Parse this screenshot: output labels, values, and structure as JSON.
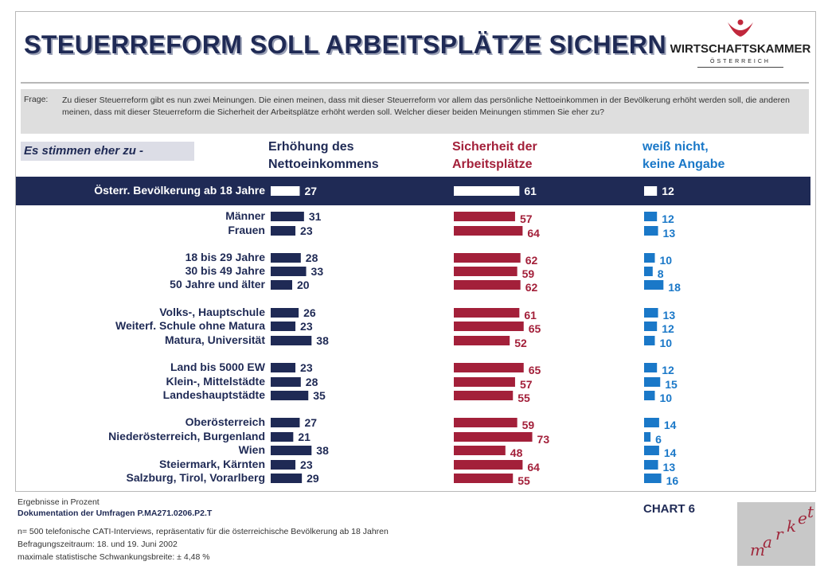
{
  "title": "STEUERREFORM SOLL ARBEITSPLÄTZE SICHERN",
  "logo": {
    "name": "WIRTSCHAFTSKAMMER",
    "sub": "ÖSTERREICH",
    "color": "#c0283c"
  },
  "question": {
    "label": "Frage:",
    "text": "Zu dieser Steuerreform gibt es nun zwei Meinungen. Die einen meinen, dass mit dieser Steuerreform vor allem das persönliche Nettoeinkommen in der Bevölkerung erhöht werden soll, die anderen meinen, dass mit dieser Steuerreform die Sicherheit der Arbeitsplätze erhöht werden soll. Welcher dieser beiden Meinungen stimmen Sie eher zu?"
  },
  "subhead": "Es stimmen eher zu -",
  "columns": [
    {
      "line1": "Erhöhung des",
      "line2": "Nettoeinkommens",
      "color": "#1f2a55"
    },
    {
      "line1": "Sicherheit der",
      "line2": "Arbeitsplätze",
      "color": "#a3203a"
    },
    {
      "line1": "weiß nicht,",
      "line2": "keine Angabe",
      "color": "#1a78c8"
    }
  ],
  "footer": {
    "line1": "Ergebnisse in Prozent",
    "line2_label": "Dokumentation der Umfragen",
    "line2_code": "P.MA271.0206.P2.T",
    "chart_label": "CHART 6",
    "line3": "n= 500 telefonische CATI-Interviews, repräsentativ für die österreichische Bevölkerung ab 18 Jahren",
    "line4": "Befragungszeitraum: 18. und 19. Juni 2002",
    "line5": "maximale statistische Schwankungsbreite: ± 4,48 %",
    "brand": "market"
  },
  "chart_data": {
    "type": "bar",
    "orientation": "horizontal",
    "unit": "%",
    "categories": [
      "Österr. Bevölkerung ab 18 Jahre",
      "Männer",
      "Frauen",
      "18 bis 29 Jahre",
      "30 bis 49 Jahre",
      "50 Jahre und älter",
      "Volks-, Hauptschule",
      "Weiterf. Schule ohne Matura",
      "Matura, Universität",
      "Land bis 5000 EW",
      "Klein-, Mittelstädte",
      "Landeshauptstädte",
      "Oberösterreich",
      "Niederösterreich, Burgenland",
      "Wien",
      "Steiermark, Kärnten",
      "Salzburg, Tirol, Vorarlberg"
    ],
    "groups": [
      0,
      1,
      1,
      2,
      2,
      2,
      3,
      3,
      3,
      4,
      4,
      4,
      5,
      5,
      5,
      5,
      5
    ],
    "series": [
      {
        "name": "Erhöhung des Nettoeinkommens",
        "color": "#1f2a55",
        "values": [
          27,
          31,
          23,
          28,
          33,
          20,
          26,
          23,
          38,
          23,
          28,
          35,
          27,
          21,
          38,
          23,
          29
        ]
      },
      {
        "name": "Sicherheit der Arbeitsplätze",
        "color": "#a3203a",
        "values": [
          61,
          57,
          64,
          62,
          59,
          62,
          61,
          65,
          52,
          65,
          57,
          55,
          59,
          73,
          48,
          64,
          55
        ]
      },
      {
        "name": "weiß nicht, keine Angabe",
        "color": "#1a78c8",
        "values": [
          12,
          12,
          13,
          10,
          8,
          18,
          13,
          12,
          10,
          12,
          15,
          10,
          14,
          6,
          14,
          13,
          16
        ]
      }
    ],
    "highlight_row": 0,
    "highlight_color": "#1f2a55"
  }
}
